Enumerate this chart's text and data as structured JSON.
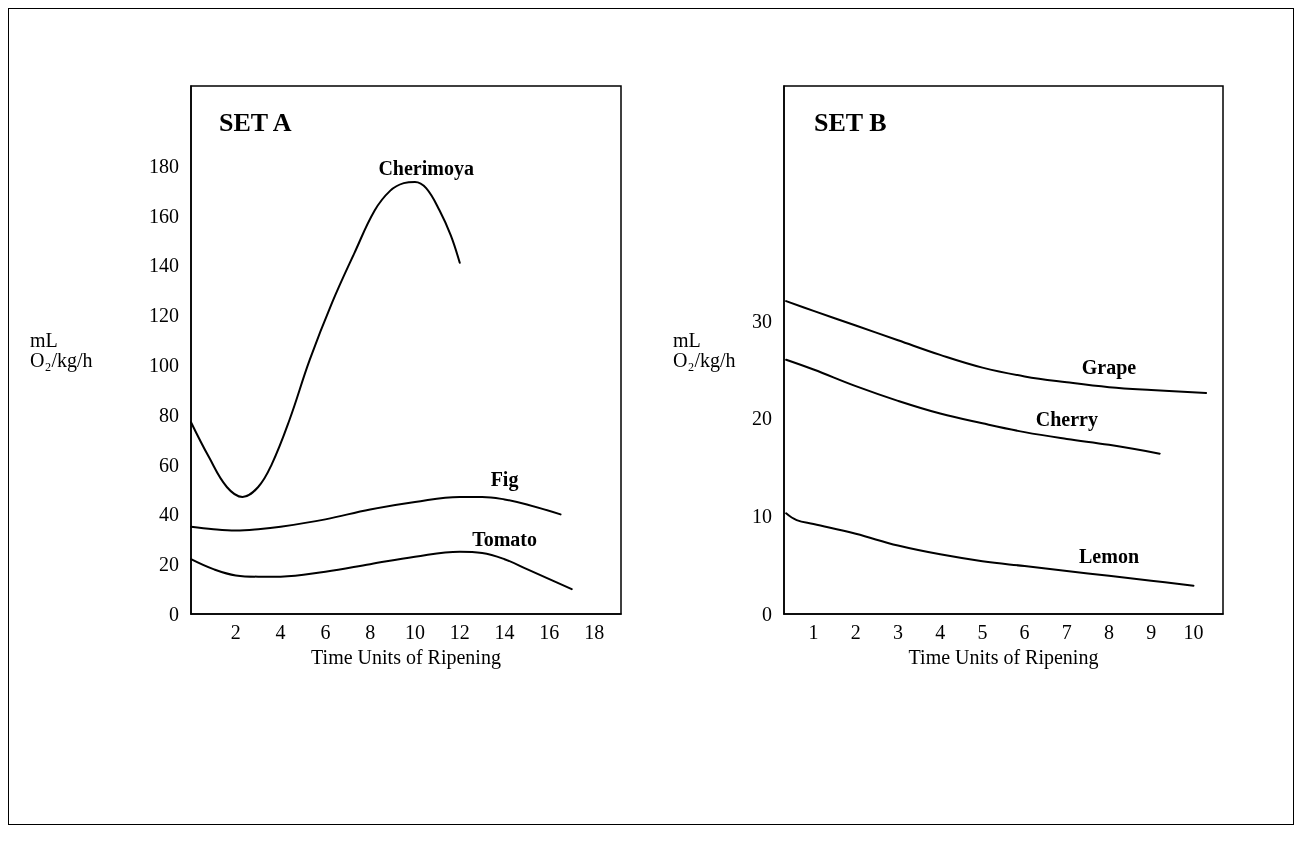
{
  "chart_data": [
    {
      "type": "line",
      "title": "SET A",
      "xlabel": "Time Units of Ripening",
      "ylabel": "mL O₂/kg/h",
      "xlim": [
        0,
        19.2
      ],
      "xticks": [
        2,
        4,
        6,
        8,
        10,
        12,
        14,
        16,
        18
      ],
      "ylim": [
        0,
        212
      ],
      "yticks": [
        0,
        20,
        40,
        60,
        80,
        100,
        120,
        140,
        160,
        180
      ],
      "grid": false,
      "legend": false,
      "series": [
        {
          "name": "Cherimoya",
          "color": "#000000",
          "x": [
            0,
            0.8,
            1.6,
            2.3,
            3,
            3.6,
            4.4,
            5.3,
            6.3,
            7.3,
            8.2,
            8.9,
            9.5,
            10,
            10.5,
            11.1,
            11.6,
            12
          ],
          "values": [
            77,
            63,
            51,
            47,
            51,
            60,
            78,
            102,
            125,
            145,
            162,
            170,
            173,
            173.5,
            171,
            162,
            152,
            141
          ]
        },
        {
          "name": "Fig",
          "color": "#000000",
          "x": [
            0,
            1,
            2,
            3,
            4,
            6,
            8,
            10,
            12,
            13,
            14,
            15,
            16.5
          ],
          "values": [
            35,
            34,
            33.5,
            34,
            35,
            38,
            42,
            45,
            47,
            47,
            46,
            44,
            40
          ]
        },
        {
          "name": "Tomato",
          "color": "#000000",
          "x": [
            0,
            1,
            2,
            3,
            4,
            6,
            8,
            10,
            12,
            13,
            14,
            15,
            16,
            17
          ],
          "values": [
            22,
            18,
            15.5,
            15,
            15,
            17,
            20,
            23,
            25,
            24.5,
            22,
            18,
            14,
            10
          ]
        }
      ]
    },
    {
      "type": "line",
      "title": "SET B",
      "xlabel": "Time Units of Ripening",
      "ylabel": "mL O₂/kg/h",
      "xlim": [
        0.3,
        10.7
      ],
      "xticks": [
        1,
        2,
        3,
        4,
        5,
        6,
        7,
        8,
        9,
        10
      ],
      "ylim": [
        0,
        54
      ],
      "yticks": [
        0,
        10,
        20,
        30
      ],
      "grid": false,
      "legend": false,
      "series": [
        {
          "name": "Grape",
          "color": "#000000",
          "x": [
            0.35,
            1,
            2,
            3,
            4,
            5,
            6,
            7,
            8,
            9,
            10.3
          ],
          "values": [
            32,
            31,
            29.5,
            28,
            26.5,
            25.2,
            24.3,
            23.7,
            23.2,
            22.9,
            22.6
          ]
        },
        {
          "name": "Cherry",
          "color": "#000000",
          "x": [
            0.35,
            1,
            2,
            3,
            4,
            5,
            6,
            7,
            8,
            9.2
          ],
          "values": [
            26,
            25,
            23.3,
            21.8,
            20.5,
            19.5,
            18.6,
            17.9,
            17.3,
            16.4
          ]
        },
        {
          "name": "Lemon",
          "color": "#000000",
          "x": [
            0.35,
            0.6,
            1,
            2,
            3,
            4,
            5,
            6,
            7,
            8,
            9,
            10
          ],
          "values": [
            10.3,
            9.6,
            9.2,
            8.2,
            7,
            6.1,
            5.4,
            4.9,
            4.4,
            3.9,
            3.4,
            2.9
          ]
        }
      ]
    }
  ]
}
